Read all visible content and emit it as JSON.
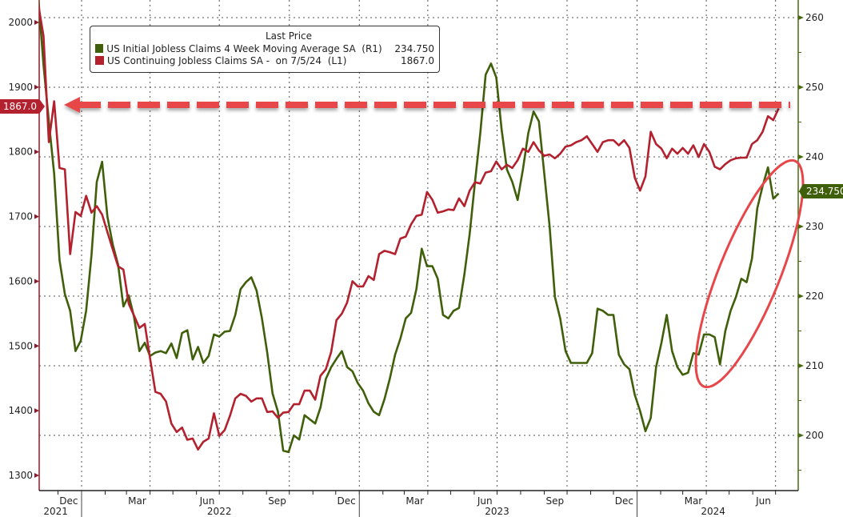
{
  "chart_data": {
    "type": "line",
    "legend": {
      "title": "Last Price",
      "placement": "top-left",
      "entries": [
        {
          "label": "US Initial Jobless Claims 4 Week Moving Average SA  (R1)",
          "value": "234.750",
          "color": "#3f5f0a"
        },
        {
          "label": "US Continuing Jobless Claims SA -  on 7/5/24  (L1)",
          "value": "1867.0",
          "color": "#b3202e"
        }
      ]
    },
    "left_axis": {
      "ticks": [
        "1300",
        "1400",
        "1500",
        "1600",
        "1700",
        "1800",
        "1900",
        "2000"
      ],
      "range": [
        1230,
        2035
      ],
      "color": "#8b1a2b"
    },
    "right_axis": {
      "ticks": [
        "200",
        "210",
        "220",
        "230",
        "240",
        "250",
        "260"
      ],
      "range": [
        191,
        262.5
      ],
      "color": "#4a6a10"
    },
    "x_axis": {
      "range": [
        "2021-11-01",
        "2024-07-20"
      ],
      "month_labels": [
        {
          "label": "Dec",
          "date": "2021-12-15"
        },
        {
          "label": "Mar",
          "date": "2022-03-15"
        },
        {
          "label": "Jun",
          "date": "2022-06-15"
        },
        {
          "label": "Sep",
          "date": "2022-09-15"
        },
        {
          "label": "Dec",
          "date": "2022-12-15"
        },
        {
          "label": "Mar",
          "date": "2023-03-15"
        },
        {
          "label": "Jun",
          "date": "2023-06-15"
        },
        {
          "label": "Sep",
          "date": "2023-09-15"
        },
        {
          "label": "Dec",
          "date": "2023-12-15"
        },
        {
          "label": "Mar",
          "date": "2024-03-15"
        },
        {
          "label": "Jun",
          "date": "2024-06-15"
        }
      ],
      "year_labels": [
        {
          "label": "2021",
          "date": "2021-11-28"
        },
        {
          "label": "2022",
          "date": "2022-07-01"
        },
        {
          "label": "2023",
          "date": "2023-07-01"
        },
        {
          "label": "2024",
          "date": "2024-04-10"
        }
      ]
    },
    "grid": true,
    "x": [
      "2021-11-05",
      "2021-11-12",
      "2021-11-19",
      "2021-11-26",
      "2021-12-03",
      "2021-12-10",
      "2021-12-17",
      "2021-12-24",
      "2021-12-31",
      "2022-01-07",
      "2022-01-14",
      "2022-01-21",
      "2022-01-28",
      "2022-02-04",
      "2022-02-11",
      "2022-02-18",
      "2022-02-25",
      "2022-03-04",
      "2022-03-11",
      "2022-03-18",
      "2022-03-25",
      "2022-04-01",
      "2022-04-08",
      "2022-04-15",
      "2022-04-22",
      "2022-04-29",
      "2022-05-06",
      "2022-05-13",
      "2022-05-20",
      "2022-05-27",
      "2022-06-03",
      "2022-06-10",
      "2022-06-17",
      "2022-06-24",
      "2022-07-01",
      "2022-07-08",
      "2022-07-15",
      "2022-07-22",
      "2022-07-29",
      "2022-08-05",
      "2022-08-12",
      "2022-08-19",
      "2022-08-26",
      "2022-09-02",
      "2022-09-09",
      "2022-09-16",
      "2022-09-23",
      "2022-09-30",
      "2022-10-07",
      "2022-10-14",
      "2022-10-21",
      "2022-10-28",
      "2022-11-04",
      "2022-11-11",
      "2022-11-18",
      "2022-11-25",
      "2022-12-02",
      "2022-12-09",
      "2022-12-16",
      "2022-12-23",
      "2022-12-30",
      "2023-01-06",
      "2023-01-13",
      "2023-01-20",
      "2023-01-27",
      "2023-02-03",
      "2023-02-10",
      "2023-02-17",
      "2023-02-24",
      "2023-03-03",
      "2023-03-10",
      "2023-03-17",
      "2023-03-24",
      "2023-03-31",
      "2023-04-07",
      "2023-04-14",
      "2023-04-21",
      "2023-04-28",
      "2023-05-05",
      "2023-05-12",
      "2023-05-19",
      "2023-05-26",
      "2023-06-02",
      "2023-06-09",
      "2023-06-16",
      "2023-06-23",
      "2023-06-30",
      "2023-07-07",
      "2023-07-14",
      "2023-07-21",
      "2023-07-28",
      "2023-08-04",
      "2023-08-11",
      "2023-08-18",
      "2023-08-25",
      "2023-09-01",
      "2023-09-08",
      "2023-09-15",
      "2023-09-22",
      "2023-09-29",
      "2023-10-06",
      "2023-10-13",
      "2023-10-20",
      "2023-10-27",
      "2023-11-03",
      "2023-11-10",
      "2023-11-17",
      "2023-11-24",
      "2023-12-01",
      "2023-12-08",
      "2023-12-15",
      "2023-12-22",
      "2023-12-29",
      "2024-01-05",
      "2024-01-12",
      "2024-01-19",
      "2024-01-26",
      "2024-02-02",
      "2024-02-09",
      "2024-02-16",
      "2024-02-23",
      "2024-03-01",
      "2024-03-08",
      "2024-03-15",
      "2024-03-22",
      "2024-03-29",
      "2024-04-05",
      "2024-04-12",
      "2024-04-19",
      "2024-04-26",
      "2024-05-03",
      "2024-05-10",
      "2024-05-17",
      "2024-05-24",
      "2024-05-31",
      "2024-06-07",
      "2024-06-14",
      "2024-06-21",
      "2024-06-28",
      "2024-07-05"
    ],
    "series": [
      {
        "name": "US Initial Jobless Claims 4 Week Moving Average SA",
        "axis": "right",
        "color": "#3f5f0a",
        "values": [
          263,
          253.2,
          245.1,
          237.6,
          225.2,
          220.3,
          217.9,
          212.1,
          213.6,
          217.9,
          225.9,
          236.4,
          239.3,
          231.4,
          227.4,
          224.5,
          218.5,
          220.1,
          217,
          212.1,
          213.3,
          211.4,
          211.9,
          212.1,
          211.8,
          213.2,
          211.1,
          214.7,
          215.1,
          210.9,
          212.7,
          210.4,
          211.4,
          214.5,
          214.2,
          214.9,
          215,
          217.3,
          221,
          222,
          222.7,
          220.8,
          216.8,
          211.9,
          206,
          203.4,
          197.8,
          197.6,
          200,
          199.4,
          202.9,
          202.3,
          201.7,
          204,
          208.1,
          209.8,
          211,
          212.1,
          209.8,
          209.2,
          207.5,
          206.4,
          204.6,
          203.4,
          202.9,
          205.2,
          208.1,
          211.6,
          213.9,
          216.8,
          217.6,
          221,
          226.8,
          224.3,
          224.3,
          222.5,
          217.3,
          216.8,
          217.9,
          218.3,
          223.1,
          228.9,
          236.4,
          243.4,
          251.8,
          253.4,
          251.4,
          243.9,
          238.2,
          236.4,
          233.8,
          238.2,
          243.4,
          246.5,
          245.1,
          237.6,
          230.1,
          219.9,
          216.8,
          212.1,
          210.4,
          210.4,
          210.4,
          210.4,
          211.8,
          218.2,
          217.9,
          217.3,
          217.3,
          211.6,
          210.2,
          209.5,
          205.8,
          203.5,
          200.6,
          202.5,
          209.8,
          213.3,
          217.3,
          212.1,
          209.8,
          208.7,
          209,
          211.8,
          211.6,
          214.5,
          214.5,
          214.1,
          210.2,
          215,
          217.9,
          219.9,
          222.5,
          222,
          225.4,
          232.6,
          235.8,
          238.5,
          234,
          234.75
        ]
      },
      {
        "name": "US Continuing Jobless Claims SA",
        "axis": "left",
        "color": "#b3202e",
        "values": [
          2028,
          1979,
          1815,
          1878,
          1775,
          1773,
          1642,
          1707,
          1701,
          1732,
          1706,
          1716,
          1703,
          1676,
          1649,
          1623,
          1618,
          1565,
          1547,
          1528,
          1534,
          1481,
          1429,
          1426,
          1414,
          1380,
          1367,
          1374,
          1355,
          1357,
          1340,
          1352,
          1357,
          1396,
          1361,
          1370,
          1392,
          1419,
          1426,
          1423,
          1414,
          1419,
          1419,
          1398,
          1399,
          1389,
          1397,
          1398,
          1410,
          1410,
          1431,
          1431,
          1417,
          1454,
          1464,
          1491,
          1540,
          1550,
          1567,
          1600,
          1592,
          1592,
          1608,
          1602,
          1642,
          1647,
          1645,
          1642,
          1666,
          1669,
          1688,
          1701,
          1703,
          1738,
          1726,
          1706,
          1708,
          1711,
          1710,
          1728,
          1716,
          1740,
          1753,
          1751,
          1768,
          1770,
          1785,
          1773,
          1780,
          1775,
          1787,
          1805,
          1800,
          1815,
          1802,
          1794,
          1796,
          1790,
          1797,
          1808,
          1810,
          1815,
          1818,
          1824,
          1812,
          1800,
          1815,
          1818,
          1818,
          1810,
          1818,
          1806,
          1760,
          1740,
          1762,
          1831,
          1812,
          1805,
          1790,
          1805,
          1797,
          1806,
          1797,
          1810,
          1792,
          1812,
          1800,
          1777,
          1773,
          1781,
          1787,
          1790,
          1791,
          1791,
          1812,
          1818,
          1831,
          1855,
          1849,
          1867
        ]
      }
    ],
    "annotations": {
      "left_last_value_tag": "1867.0",
      "right_last_value_tag": "234.750",
      "arrow_color": "#e8474a",
      "highlight_ellipse_color": "#e8474a"
    }
  }
}
